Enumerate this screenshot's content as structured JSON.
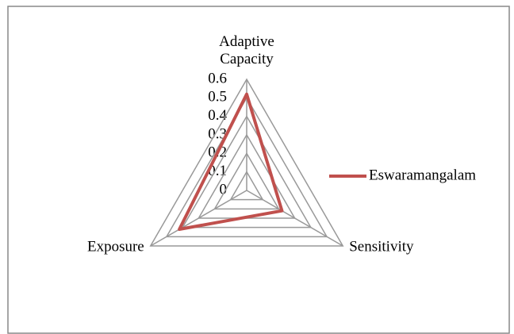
{
  "chart_data": {
    "type": "radar",
    "categories": [
      "Adaptive Capacity",
      "Sensitivity",
      "Exposure"
    ],
    "series": [
      {
        "name": "Eswaramangalam",
        "color": "#c0504d",
        "values": [
          0.52,
          0.22,
          0.42
        ]
      }
    ],
    "ylim": [
      0,
      0.6
    ],
    "yticks": [
      0,
      0.1,
      0.2,
      0.3,
      0.4,
      0.5,
      0.6
    ],
    "grid": true,
    "legend": "right"
  }
}
